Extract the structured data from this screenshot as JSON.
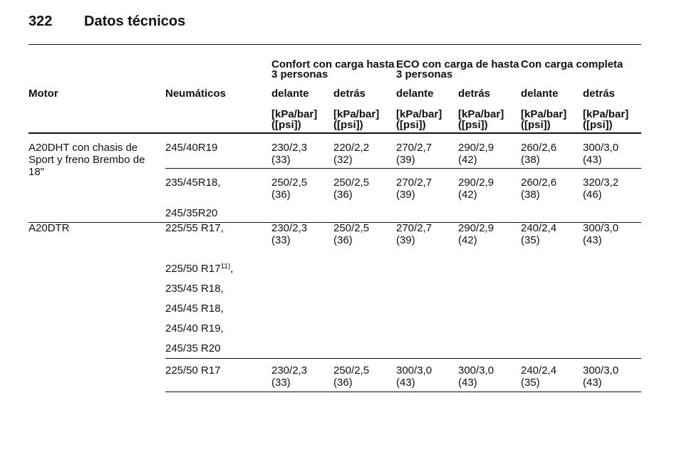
{
  "header": {
    "page": "322",
    "title": "Datos técnicos"
  },
  "table": {
    "group_headers": [
      [
        "Confort con carga hasta",
        "3 personas"
      ],
      [
        "ECO con carga de hasta",
        "3 personas"
      ],
      [
        "Con carga completa"
      ]
    ],
    "columns": [
      "Motor",
      "Neumáticos",
      "delante",
      "detrás",
      "delante",
      "detrás",
      "delante",
      "detrás"
    ],
    "units": [
      [
        "[kPa/bar]",
        "([psi])"
      ],
      [
        "[kPa/bar]",
        "([psi])"
      ],
      [
        "[kPa/bar]",
        "([psi])"
      ],
      [
        "[kPa/bar]",
        "([psi])"
      ],
      [
        "[kPa/bar]",
        "([psi])"
      ],
      [
        "[kPa/bar]",
        "([psi])"
      ]
    ],
    "groups": [
      {
        "motor": [
          "A20DHT con chasis de",
          "Sport y freno Brembo de",
          "18\""
        ],
        "entries": [
          {
            "tires": [
              "245/40R19"
            ],
            "values": [
              [
                "230/2,3",
                "(33)"
              ],
              [
                "220/2,2",
                "(32)"
              ],
              [
                "270/2,7",
                "(39)"
              ],
              [
                "290/2,9",
                "(42)"
              ],
              [
                "260/2,6",
                "(38)"
              ],
              [
                "300/3,0",
                "(43)"
              ]
            ]
          },
          {
            "tires": [
              "235/45R18,",
              "245/35R20"
            ],
            "values": [
              [
                "250/2,5",
                "(36)"
              ],
              [
                "250/2,5",
                "(36)"
              ],
              [
                "270/2,7",
                "(39)"
              ],
              [
                "290/2,9",
                "(42)"
              ],
              [
                "260/2,6",
                "(38)"
              ],
              [
                "320/3,2",
                "(46)"
              ]
            ]
          }
        ]
      },
      {
        "motor": [
          "A20DTR"
        ],
        "entries": [
          {
            "tires": [
              "225/55 R17,",
              {
                "text": "225/50 R17",
                "footnote": "11)",
                "suffix": ","
              },
              "235/45 R18,",
              "245/45 R18,",
              "245/40 R19,",
              "245/35 R20"
            ],
            "values": [
              [
                "230/2,3",
                "(33)"
              ],
              [
                "250/2,5",
                "(36)"
              ],
              [
                "270/2,7",
                "(39)"
              ],
              [
                "290/2,9",
                "(42)"
              ],
              [
                "240/2,4",
                "(35)"
              ],
              [
                "300/3,0",
                "(43)"
              ]
            ]
          },
          {
            "tires": [
              "225/50 R17"
            ],
            "values": [
              [
                "230/2,3",
                "(33)"
              ],
              [
                "250/2,5",
                "(36)"
              ],
              [
                "300/3,0",
                "(43)"
              ],
              [
                "300/3,0",
                "(43)"
              ],
              [
                "240/2,4",
                "(35)"
              ],
              [
                "300/3,0",
                "(43)"
              ]
            ]
          }
        ]
      }
    ]
  }
}
